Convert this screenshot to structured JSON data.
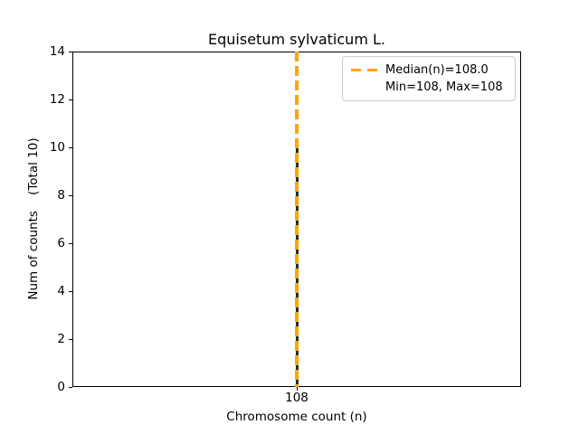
{
  "chart_data": {
    "type": "bar",
    "title": "Equisetum sylvaticum L.",
    "xlabel": "Chromosome count (n)",
    "ylabel": "Num of counts    (Total 10)",
    "x": [
      108
    ],
    "values": [
      10
    ],
    "xticks": [
      "108"
    ],
    "yticks": [
      0,
      2,
      4,
      6,
      8,
      10,
      12,
      14
    ],
    "ylim": [
      0,
      14
    ],
    "grid": false,
    "total_counts": 10,
    "median": 108.0,
    "min": 108,
    "max": 108,
    "bar_color": "#1a3328",
    "median_line_color": "#ffa500",
    "median_line_style": "dashed",
    "legend": {
      "position": "upper right",
      "entries": [
        {
          "label": "Median(n)=108.0",
          "handle": "orange-dashed-line"
        },
        {
          "label": "Min=108, Max=108",
          "handle": "none"
        }
      ]
    }
  }
}
